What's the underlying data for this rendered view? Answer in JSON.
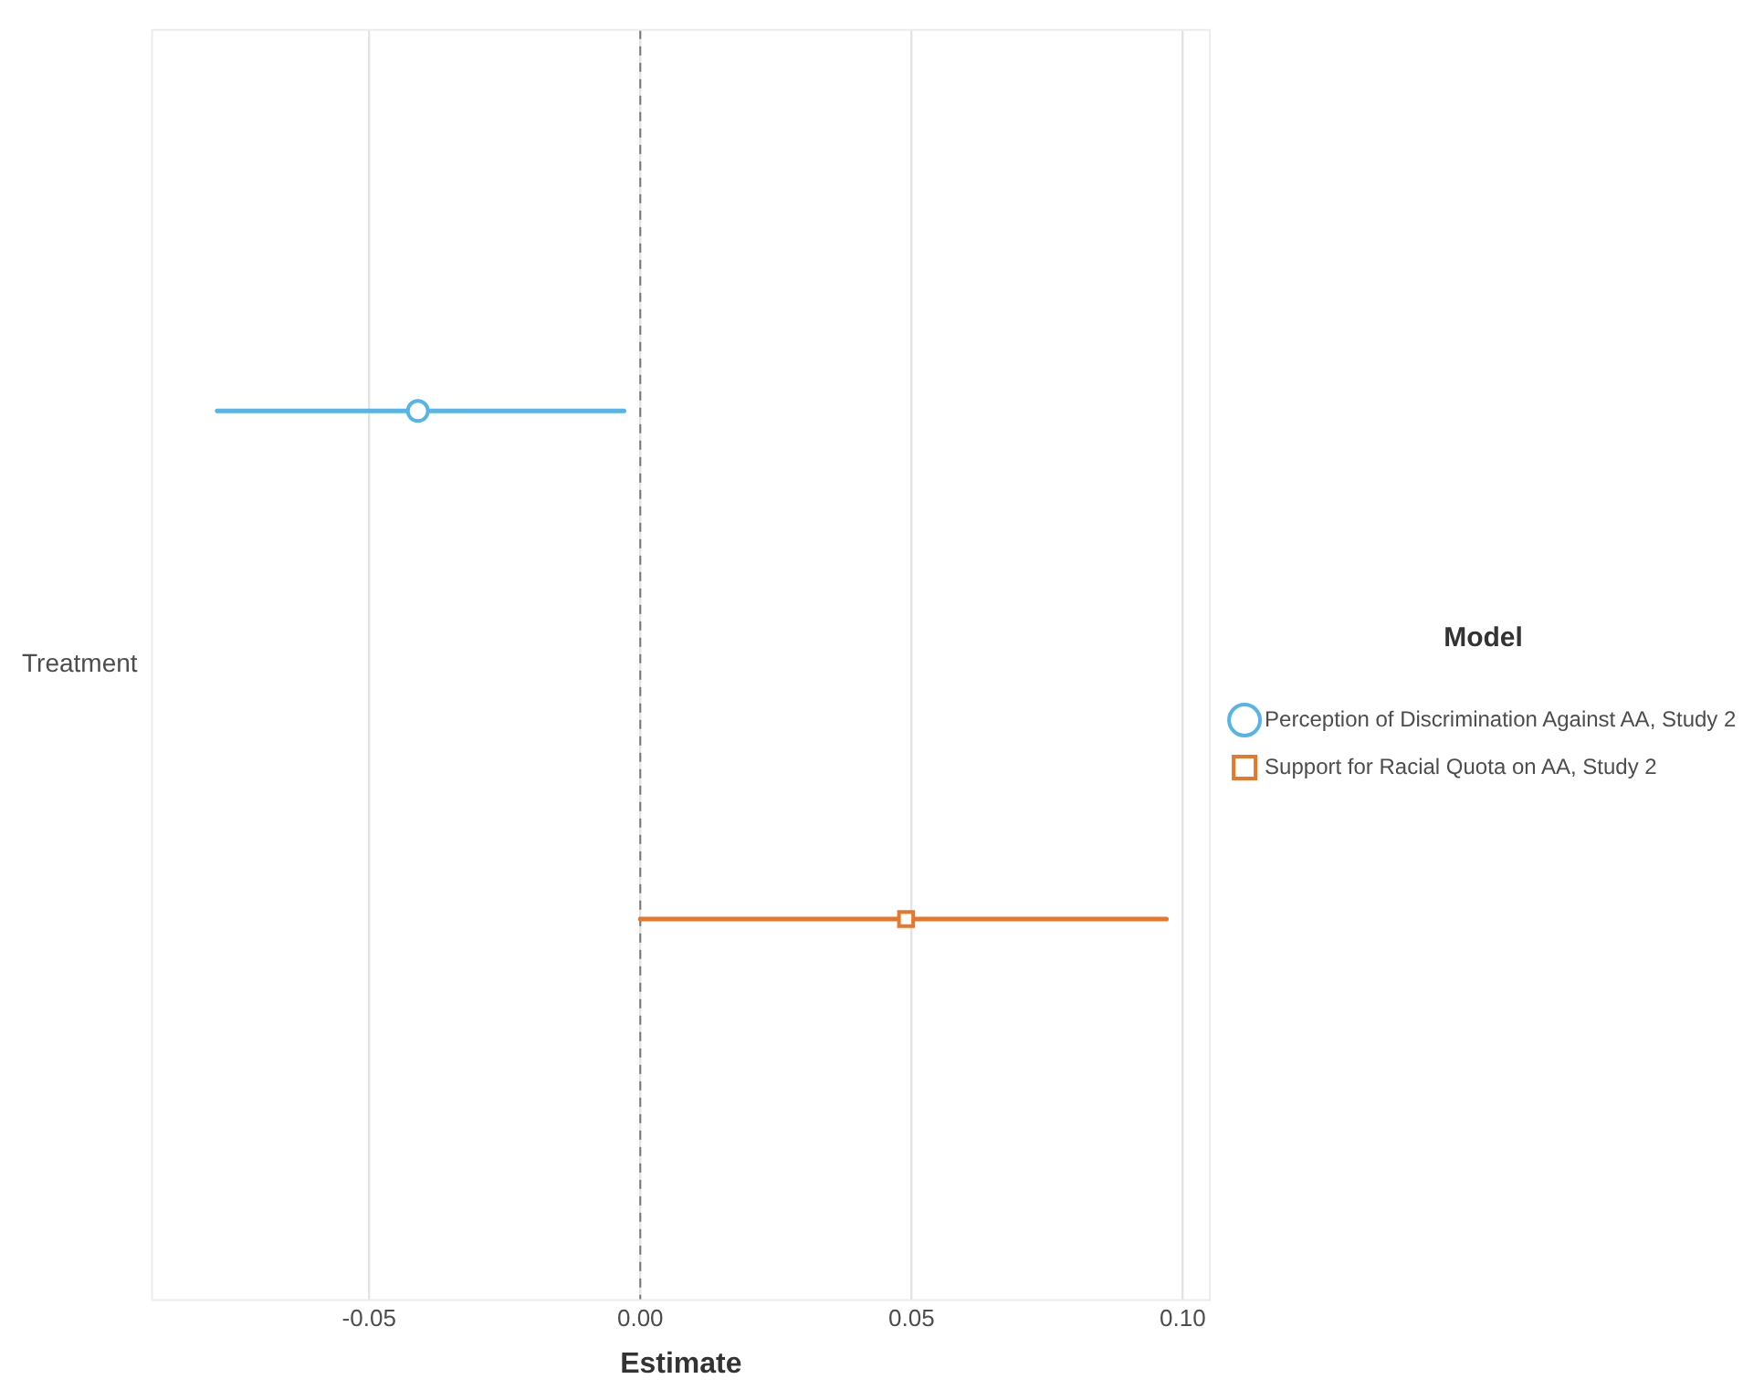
{
  "chart_data": {
    "type": "scatter",
    "orientation": "horizontal",
    "categories": [
      "Treatment"
    ],
    "series": [
      {
        "name": "Perception of Discrimination Against AA, Study 2",
        "color": "#56b4e9",
        "marker": "circle",
        "values": [
          -0.041
        ],
        "errors": [
          [
            -0.078,
            -0.003
          ]
        ]
      },
      {
        "name": "Support for Racial Quota on AA, Study 2",
        "color": "#e8762b",
        "marker": "square",
        "values": [
          0.049
        ],
        "errors": [
          [
            0.0,
            0.097
          ]
        ]
      }
    ],
    "xlim": [
      -0.09,
      0.105
    ],
    "xticks": [
      {
        "value": -0.05,
        "label": "-0.05"
      },
      {
        "value": 0,
        "label": "0.00"
      },
      {
        "value": 0.05,
        "label": "0.05"
      },
      {
        "value": 0.1,
        "label": "0.10"
      }
    ],
    "xlabel": "Estimate",
    "legend": "right",
    "legend_title": "Model",
    "grid": "x",
    "ref_lines": [
      {
        "axis": "x",
        "value": 0,
        "line_style": "dashed",
        "color": "#777777"
      }
    ]
  }
}
